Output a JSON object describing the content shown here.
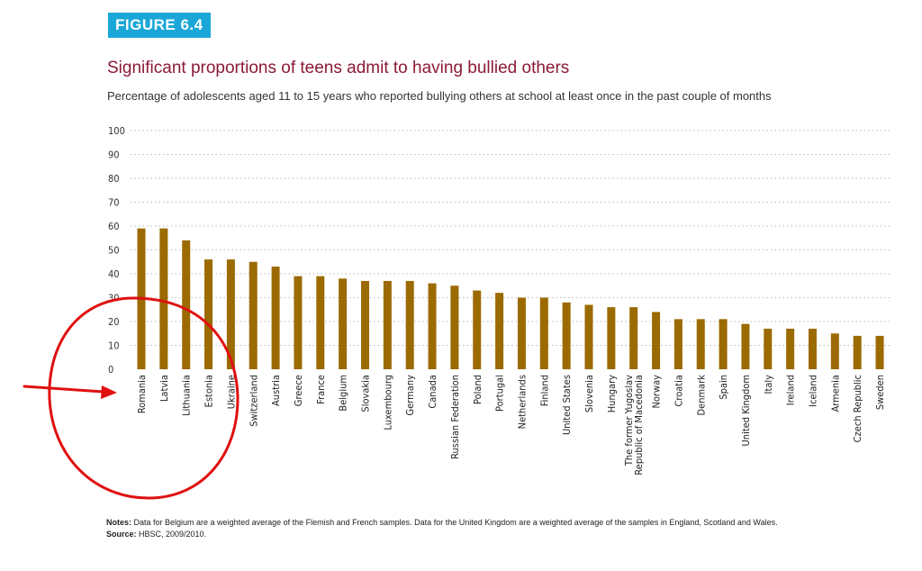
{
  "figure": {
    "label": "FIGURE 6.4",
    "title": "Significant proportions of teens admit to having bullied others",
    "subtitle": "Percentage of adolescents aged 11 to 15 years who reported bullying others at school at least once in the past couple of months"
  },
  "colors": {
    "bar": "#9b6a00",
    "badge": "#1aa7d8",
    "title": "#8b1a36",
    "annotation": "#e01010"
  },
  "chart_data": {
    "type": "bar",
    "categories": [
      "Romania",
      "Latvia",
      "Lithuania",
      "Estonia",
      "Ukraine",
      "Switzerland",
      "Austria",
      "Greece",
      "France",
      "Belgium",
      "Slovakia",
      "Luxembourg",
      "Germany",
      "Canada",
      "Russian Federation",
      "Poland",
      "Portugal",
      "Netherlands",
      "Finland",
      "United States",
      "Slovenia",
      "Hungary",
      "The former Yugoslav Republic of Macedonia",
      "Norway",
      "Croatia",
      "Denmark",
      "Spain",
      "United Kingdom",
      "Italy",
      "Ireland",
      "Iceland",
      "Armenia",
      "Czech Republic",
      "Sweden"
    ],
    "category_label_lines": [
      [
        "Romania"
      ],
      [
        "Latvia"
      ],
      [
        "Lithuania"
      ],
      [
        "Estonia"
      ],
      [
        "Ukraine"
      ],
      [
        "Switzerland"
      ],
      [
        "Austria"
      ],
      [
        "Greece"
      ],
      [
        "France"
      ],
      [
        "Belgium"
      ],
      [
        "Slovakia"
      ],
      [
        "Luxembourg"
      ],
      [
        "Germany"
      ],
      [
        "Canada"
      ],
      [
        "Russian Federation"
      ],
      [
        "Poland"
      ],
      [
        "Portugal"
      ],
      [
        "Netherlands"
      ],
      [
        "Finland"
      ],
      [
        "United States"
      ],
      [
        "Slovenia"
      ],
      [
        "Hungary"
      ],
      [
        "The former Yugoslav",
        "Republic of Macedonia"
      ],
      [
        "Norway"
      ],
      [
        "Croatia"
      ],
      [
        "Denmark"
      ],
      [
        "Spain"
      ],
      [
        "United Kingdom"
      ],
      [
        "Italy"
      ],
      [
        "Ireland"
      ],
      [
        "Iceland"
      ],
      [
        "Armenia"
      ],
      [
        "Czech Republic"
      ],
      [
        "Sweden"
      ]
    ],
    "values": [
      59,
      59,
      54,
      46,
      46,
      45,
      43,
      39,
      39,
      38,
      37,
      37,
      37,
      36,
      35,
      33,
      32,
      30,
      30,
      28,
      27,
      26,
      26,
      24,
      21,
      21,
      21,
      19,
      17,
      17,
      17,
      15,
      14,
      14
    ],
    "ylim": [
      0,
      100
    ],
    "yticks": [
      0,
      10,
      20,
      30,
      40,
      50,
      60,
      70,
      80,
      90,
      100
    ],
    "grid": true,
    "xlabel": "",
    "ylabel": ""
  },
  "annotations": [
    {
      "type": "hand-drawn circle",
      "target": "Romania, Latvia, Lithuania, Estonia, Ukraine",
      "color": "#e01010"
    },
    {
      "type": "arrow",
      "target": "Romania",
      "color": "#e01010"
    }
  ],
  "notes": {
    "notes_label": "Notes:",
    "notes_text": " Data for Belgium are a weighted average of the Flemish and French samples. Data for the United Kingdom are a weighted average of the samples in England, Scotland and Wales.",
    "source_label": "Source:",
    "source_text": " HBSC, 2009/2010."
  }
}
